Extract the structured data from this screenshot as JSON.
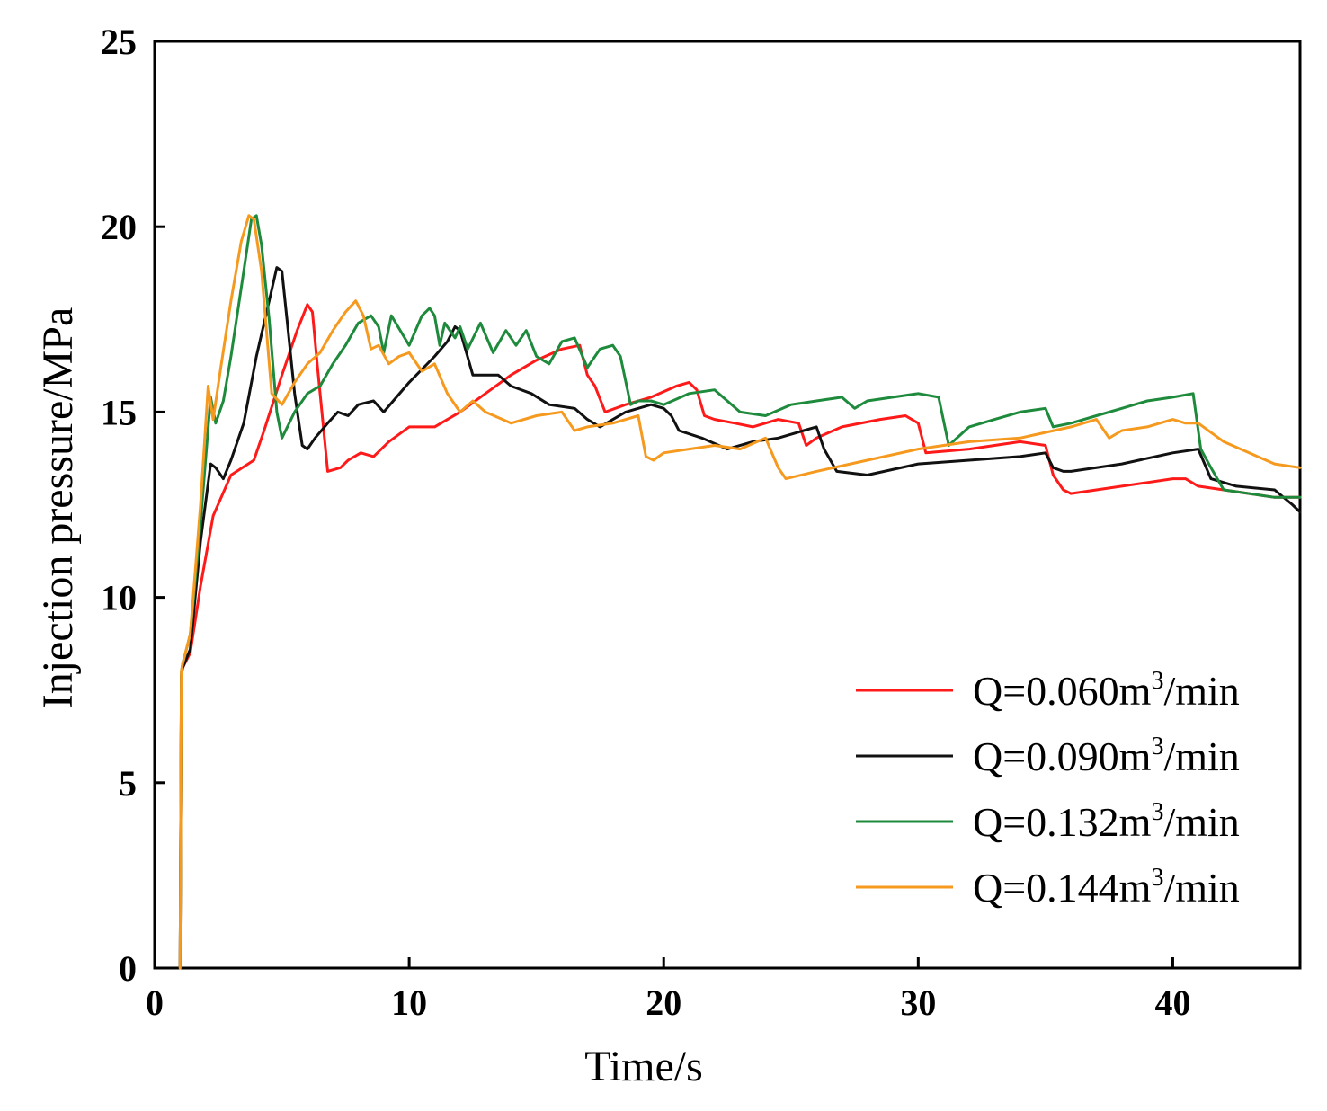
{
  "chart_data": {
    "type": "line",
    "title": "",
    "xlabel": "Time/s",
    "ylabel": "Injection pressure/MPa",
    "xlim": [
      0,
      45
    ],
    "ylim": [
      0,
      25
    ],
    "xticks": [
      0,
      10,
      20,
      30,
      40
    ],
    "yticks": [
      0,
      5,
      10,
      15,
      20,
      25
    ],
    "legend_position": "bottom-right",
    "series": [
      {
        "name": "Q=0.060m3/min",
        "label_prefix": "Q=0.060m",
        "label_sup": "3",
        "label_suffix": "/min",
        "color": "#ff1a1a",
        "x": [
          1.0,
          1.05,
          1.1,
          1.4,
          1.8,
          2.3,
          3.0,
          3.9,
          4.3,
          5.0,
          5.6,
          6.0,
          6.2,
          6.4,
          6.8,
          7.3,
          7.6,
          8.1,
          8.6,
          9.2,
          10.0,
          11.0,
          12.0,
          13.0,
          14.0,
          15.0,
          16.0,
          16.7,
          17.0,
          17.3,
          17.7,
          18.5,
          19.5,
          20.5,
          21.0,
          21.3,
          21.6,
          22.0,
          22.8,
          23.5,
          24.5,
          25.3,
          25.6,
          26.0,
          27.0,
          28.5,
          29.5,
          30.0,
          30.3,
          32.0,
          34.0,
          35.0,
          35.3,
          35.7,
          36.0,
          37.0,
          39.0,
          40.0,
          40.5,
          41.0,
          42.0,
          43.0,
          44.0,
          45.0
        ],
        "y": [
          0,
          7.9,
          8.1,
          8.5,
          10.3,
          12.2,
          13.3,
          13.7,
          14.5,
          16.0,
          17.2,
          17.9,
          17.7,
          16.2,
          13.4,
          13.5,
          13.7,
          13.9,
          13.8,
          14.2,
          14.6,
          14.6,
          15.0,
          15.5,
          16.0,
          16.4,
          16.7,
          16.8,
          16.0,
          15.7,
          15.0,
          15.2,
          15.4,
          15.7,
          15.8,
          15.6,
          14.9,
          14.8,
          14.7,
          14.6,
          14.8,
          14.7,
          14.1,
          14.3,
          14.6,
          14.8,
          14.9,
          14.7,
          13.9,
          14.0,
          14.2,
          14.1,
          13.3,
          12.9,
          12.8,
          12.9,
          13.1,
          13.2,
          13.2,
          13.0,
          12.9,
          12.8,
          12.7,
          12.7
        ]
      },
      {
        "name": "Q=0.090m3/min",
        "label_prefix": "Q=0.090m",
        "label_sup": "3",
        "label_suffix": "/min",
        "color": "#111111",
        "x": [
          1.0,
          1.05,
          1.1,
          1.4,
          1.8,
          2.2,
          2.4,
          2.7,
          3.0,
          3.5,
          4.0,
          4.5,
          4.8,
          5.0,
          5.2,
          5.5,
          5.8,
          6.0,
          6.3,
          6.8,
          7.2,
          7.6,
          8.0,
          8.6,
          9.0,
          10.0,
          11.0,
          11.5,
          11.8,
          12.0,
          12.5,
          13.5,
          14.0,
          14.8,
          15.5,
          16.5,
          17.0,
          17.5,
          18.5,
          19.5,
          20.0,
          20.3,
          20.6,
          21.5,
          22.5,
          23.5,
          24.5,
          25.5,
          26.0,
          26.3,
          26.8,
          28.0,
          30.0,
          32.0,
          34.0,
          35.0,
          35.3,
          35.7,
          36.0,
          38.0,
          40.0,
          41.0,
          41.5,
          42.5,
          44.0,
          44.7,
          45.0
        ],
        "y": [
          0,
          7.9,
          8.1,
          8.6,
          11.5,
          13.6,
          13.5,
          13.2,
          13.7,
          14.7,
          16.5,
          18.0,
          18.9,
          18.8,
          17.5,
          15.5,
          14.1,
          14.0,
          14.3,
          14.7,
          15.0,
          14.9,
          15.2,
          15.3,
          15.0,
          15.8,
          16.5,
          16.9,
          17.3,
          17.2,
          16.0,
          16.0,
          15.7,
          15.5,
          15.2,
          15.1,
          14.8,
          14.6,
          15.0,
          15.2,
          15.1,
          14.9,
          14.5,
          14.3,
          14.0,
          14.2,
          14.3,
          14.5,
          14.6,
          14.0,
          13.4,
          13.3,
          13.6,
          13.7,
          13.8,
          13.9,
          13.5,
          13.4,
          13.4,
          13.6,
          13.9,
          14.0,
          13.2,
          13.0,
          12.9,
          12.5,
          12.3
        ]
      },
      {
        "name": "Q=0.132m3/min",
        "label_prefix": "Q=0.132m",
        "label_sup": "3",
        "label_suffix": "/min",
        "color": "#1e8a3c",
        "x": [
          1.0,
          1.05,
          1.1,
          1.4,
          1.8,
          2.2,
          2.4,
          2.7,
          3.0,
          3.5,
          3.8,
          4.0,
          4.2,
          4.5,
          4.8,
          5.0,
          5.5,
          6.0,
          6.5,
          7.0,
          7.5,
          8.0,
          8.5,
          8.8,
          9.0,
          9.3,
          10.0,
          10.5,
          10.8,
          11.0,
          11.2,
          11.4,
          11.8,
          12.0,
          12.3,
          12.8,
          13.3,
          13.8,
          14.2,
          14.6,
          15.0,
          15.5,
          16.0,
          16.5,
          17.0,
          17.5,
          18.0,
          18.3,
          18.7,
          19.0,
          19.5,
          20.0,
          21.0,
          22.0,
          23.0,
          24.0,
          25.0,
          26.0,
          27.0,
          27.5,
          28.0,
          29.0,
          30.0,
          30.8,
          31.2,
          32.0,
          33.0,
          34.0,
          35.0,
          35.3,
          36.0,
          37.0,
          38.0,
          39.0,
          40.0,
          40.8,
          41.1,
          41.5,
          42.0,
          43.0,
          44.0,
          45.0
        ],
        "y": [
          0,
          8.0,
          8.2,
          9.0,
          12.0,
          15.4,
          14.7,
          15.3,
          16.5,
          18.8,
          20.2,
          20.3,
          19.5,
          17.5,
          15.0,
          14.3,
          15.0,
          15.5,
          15.7,
          16.3,
          16.8,
          17.4,
          17.6,
          17.3,
          16.6,
          17.6,
          16.8,
          17.6,
          17.8,
          17.6,
          16.8,
          17.4,
          17.0,
          17.3,
          16.7,
          17.4,
          16.6,
          17.2,
          16.8,
          17.2,
          16.5,
          16.3,
          16.9,
          17.0,
          16.2,
          16.7,
          16.8,
          16.5,
          15.2,
          15.3,
          15.3,
          15.2,
          15.5,
          15.6,
          15.0,
          14.9,
          15.2,
          15.3,
          15.4,
          15.1,
          15.3,
          15.4,
          15.5,
          15.4,
          14.1,
          14.6,
          14.8,
          15.0,
          15.1,
          14.6,
          14.7,
          14.9,
          15.1,
          15.3,
          15.4,
          15.5,
          14.0,
          13.5,
          12.9,
          12.8,
          12.7,
          12.7
        ]
      },
      {
        "name": "Q=0.144m3/min",
        "label_prefix": "Q=0.144m",
        "label_sup": "3",
        "label_suffix": "/min",
        "color": "#f59a1f",
        "x": [
          1.0,
          1.05,
          1.1,
          1.4,
          1.8,
          2.1,
          2.3,
          2.6,
          3.0,
          3.4,
          3.7,
          3.9,
          4.2,
          4.6,
          5.0,
          5.5,
          6.0,
          6.5,
          7.0,
          7.5,
          7.9,
          8.2,
          8.5,
          8.8,
          9.2,
          9.6,
          10.0,
          10.5,
          11.0,
          11.5,
          12.0,
          12.5,
          13.0,
          14.0,
          15.0,
          16.0,
          16.5,
          17.0,
          18.0,
          19.0,
          19.3,
          19.6,
          20.0,
          21.0,
          22.0,
          23.0,
          24.0,
          24.5,
          24.8,
          26.0,
          28.0,
          30.0,
          32.0,
          34.0,
          36.0,
          37.0,
          37.5,
          38.0,
          39.0,
          40.0,
          40.5,
          41.0,
          42.0,
          43.0,
          44.0,
          45.0
        ],
        "y": [
          0,
          8.0,
          8.2,
          9.0,
          12.5,
          15.7,
          14.8,
          16.2,
          18.0,
          19.6,
          20.3,
          20.2,
          18.8,
          15.5,
          15.2,
          15.8,
          16.3,
          16.6,
          17.2,
          17.7,
          18.0,
          17.6,
          16.7,
          16.8,
          16.3,
          16.5,
          16.6,
          16.1,
          16.3,
          15.5,
          15.0,
          15.3,
          15.0,
          14.7,
          14.9,
          15.0,
          14.5,
          14.6,
          14.7,
          14.9,
          13.8,
          13.7,
          13.9,
          14.0,
          14.1,
          14.0,
          14.3,
          13.5,
          13.2,
          13.4,
          13.7,
          14.0,
          14.2,
          14.3,
          14.6,
          14.8,
          14.3,
          14.5,
          14.6,
          14.8,
          14.7,
          14.7,
          14.2,
          13.9,
          13.6,
          13.5
        ]
      }
    ]
  }
}
